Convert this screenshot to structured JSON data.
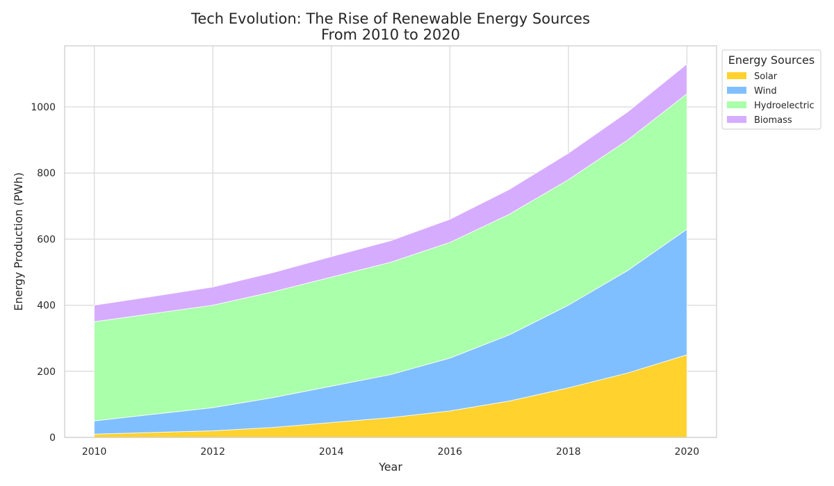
{
  "chart_data": {
    "type": "area",
    "stacked": true,
    "title": "Tech Evolution: The Rise of Renewable Energy Sources",
    "subtitle": "From 2010 to 2020",
    "xlabel": "Year",
    "ylabel": "Energy Production (PWh)",
    "x": [
      2010,
      2011,
      2012,
      2013,
      2014,
      2015,
      2016,
      2017,
      2018,
      2019,
      2020
    ],
    "xticks": [
      2010,
      2012,
      2014,
      2016,
      2018,
      2020
    ],
    "yticks": [
      0,
      200,
      400,
      600,
      800,
      1000
    ],
    "xlim": [
      2009.5,
      2020.5
    ],
    "ylim": [
      0,
      1185
    ],
    "grid": true,
    "legend": {
      "title": "Energy Sources",
      "placement": "outside-top-right"
    },
    "series": [
      {
        "name": "Solar",
        "color": "#FFD22E",
        "values": [
          10,
          15,
          20,
          30,
          45,
          60,
          80,
          110,
          150,
          195,
          250
        ]
      },
      {
        "name": "Wind",
        "color": "#80BFFF",
        "values": [
          40,
          55,
          70,
          90,
          110,
          130,
          160,
          200,
          250,
          310,
          380
        ]
      },
      {
        "name": "Hydroelectric",
        "color": "#AAFFAA",
        "values": [
          300,
          305,
          310,
          320,
          330,
          340,
          350,
          365,
          380,
          395,
          410
        ]
      },
      {
        "name": "Biomass",
        "color": "#D6ACFF",
        "values": [
          50,
          52,
          55,
          58,
          62,
          65,
          70,
          75,
          80,
          85,
          90
        ]
      }
    ]
  }
}
